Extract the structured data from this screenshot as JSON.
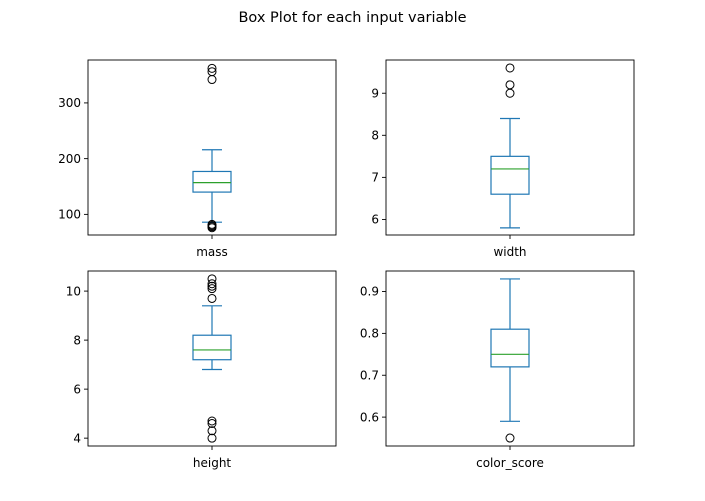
{
  "chart_data": {
    "type": "box",
    "title": "Box Plot for each input variable",
    "subplots": [
      {
        "variable": "mass",
        "xlabel": "mass",
        "ylim": [
          63,
          377
        ],
        "yticks": [
          100,
          200,
          300
        ],
        "box": {
          "whisker_low": 86,
          "q1": 140,
          "median": 157,
          "q3": 177,
          "whisker_high": 216
        },
        "outliers": [
          76,
          78,
          80,
          82,
          342,
          356,
          362
        ]
      },
      {
        "variable": "width",
        "xlabel": "width",
        "ylim": [
          5.63,
          9.79
        ],
        "yticks": [
          6,
          7,
          8,
          9
        ],
        "box": {
          "whisker_low": 5.8,
          "q1": 6.6,
          "median": 7.2,
          "q3": 7.5,
          "whisker_high": 8.4
        },
        "outliers": [
          9.0,
          9.2,
          9.6
        ]
      },
      {
        "variable": "height",
        "xlabel": "height",
        "ylim": [
          3.68,
          10.82
        ],
        "yticks": [
          4,
          6,
          8,
          10
        ],
        "box": {
          "whisker_low": 6.8,
          "q1": 7.2,
          "median": 7.6,
          "q3": 8.2,
          "whisker_high": 9.4
        },
        "outliers": [
          4.0,
          4.3,
          4.6,
          4.7,
          9.7,
          10.1,
          10.2,
          10.3,
          10.5
        ]
      },
      {
        "variable": "color_score",
        "xlabel": "color_score",
        "ylim": [
          0.531,
          0.949
        ],
        "yticks": [
          0.6,
          0.7,
          0.8,
          0.9
        ],
        "box": {
          "whisker_low": 0.59,
          "q1": 0.72,
          "median": 0.75,
          "q3": 0.81,
          "whisker_high": 0.93
        },
        "outliers": [
          0.55
        ]
      }
    ]
  }
}
